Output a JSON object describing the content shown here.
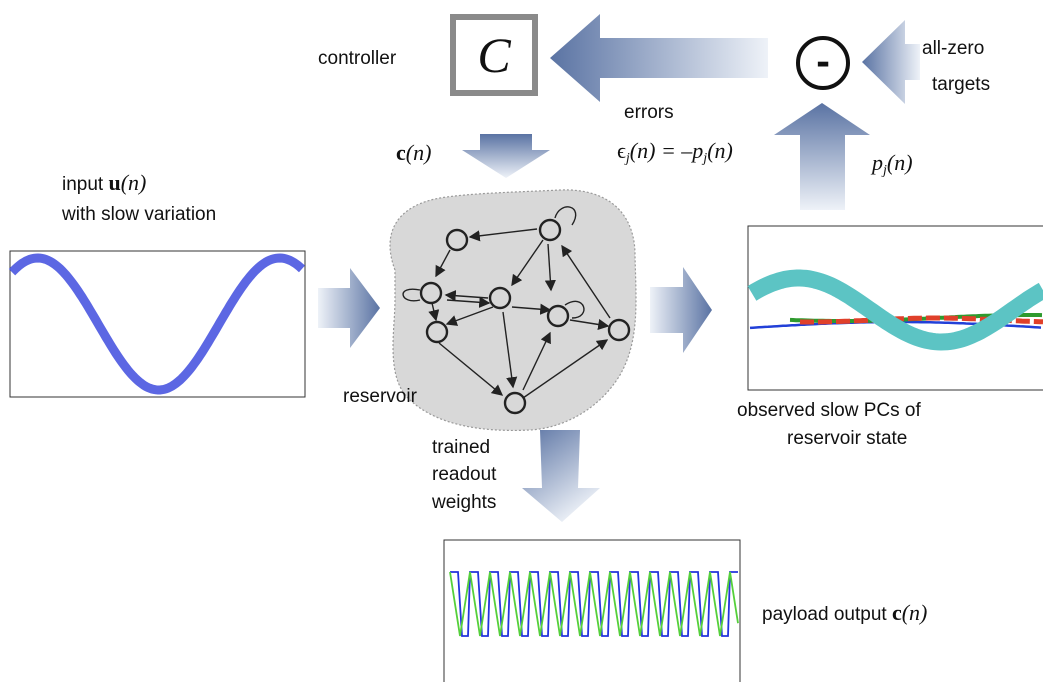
{
  "controller": {
    "label": "controller",
    "symbol": "C"
  },
  "subtractor": {
    "symbol": "-"
  },
  "targets": {
    "line1": "all-zero",
    "line2": "targets"
  },
  "errors": {
    "label": "errors",
    "formula_eps": "ϵ",
    "formula_sub": "j",
    "formula_mid": "(n) = –p",
    "formula_end": "(n)"
  },
  "pc_signal": {
    "p": "p",
    "sub": "j",
    "arg": "(n)"
  },
  "control_signal": {
    "c": "c",
    "arg": "(n)"
  },
  "input": {
    "line1_prefix": "input ",
    "u": "u",
    "arg": "(n)",
    "line2": "with slow variation"
  },
  "reservoir": {
    "label": "reservoir"
  },
  "readout": {
    "line1": "trained",
    "line2": "readout",
    "line3": "weights"
  },
  "observed": {
    "line1": "observed slow PCs of",
    "line2": "reservoir state"
  },
  "payload": {
    "prefix": "payload output ",
    "c": "c",
    "arg": "(n)"
  },
  "colors": {
    "arrow": "#5a73a3",
    "arrow_light": "#e8edf6",
    "sine": "#4a57e0",
    "pc_cyan": "#5cc4c4",
    "pc_blue": "#2240d8",
    "pc_red": "#e0402a",
    "pc_green": "#2e9a2e",
    "out_green": "#55d03a",
    "out_blue": "#2233dd",
    "reservoir_fill": "#d8d8d8"
  }
}
